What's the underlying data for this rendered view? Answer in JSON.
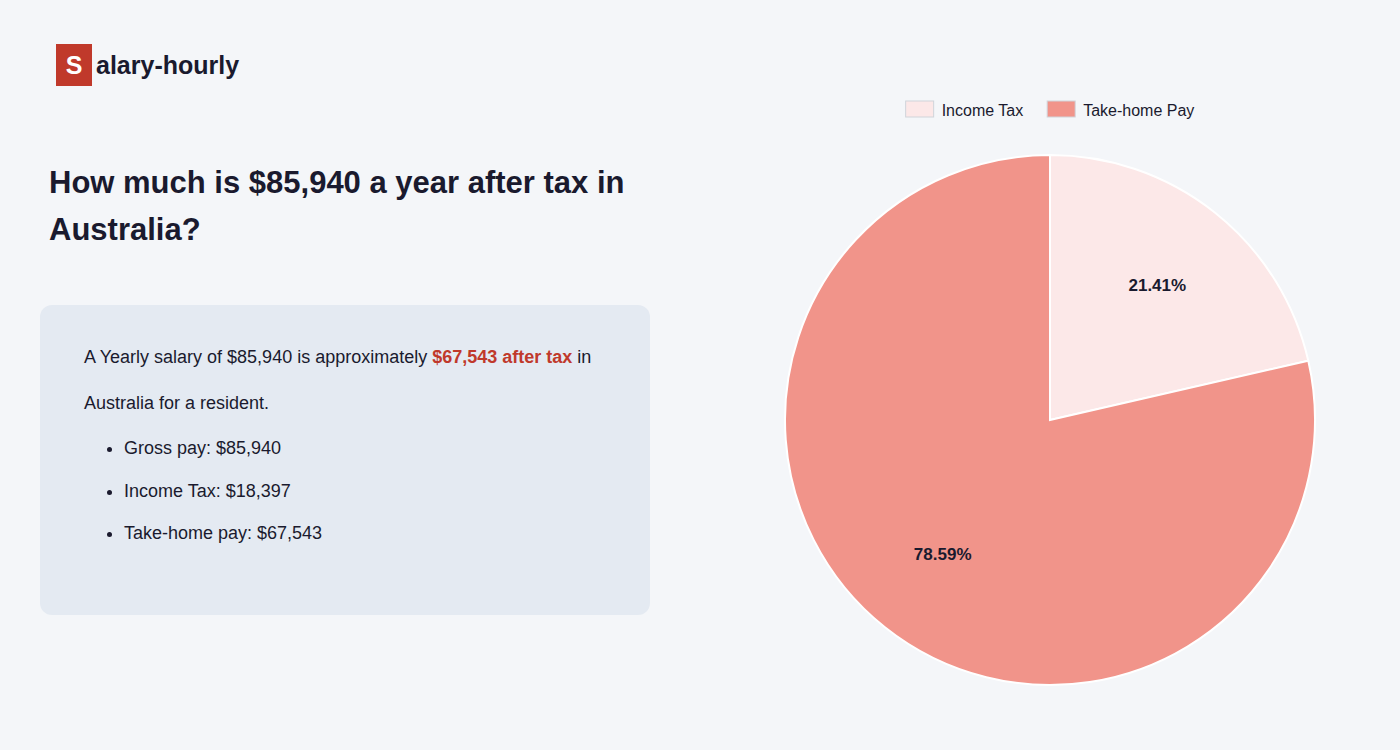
{
  "chart_data": {
    "type": "pie",
    "title": "How much is $85,940 a year after tax in Australia?",
    "annotations": [
      [
        "S",
        "alary-hourly"
      ],
      [
        "A Yearly salary of $85,940 is approximately ",
        "$67,543 after tax",
        " in"
      ],
      [
        "Australia for a resident."
      ],
      [
        "Gross pay: $85,940"
      ],
      [
        "Income Tax: $18,397"
      ],
      [
        "Take-home pay: $67,543"
      ]
    ],
    "categories": [
      "Income Tax",
      "Take-home Pay"
    ],
    "values": [
      21.41,
      78.59
    ],
    "value_labels": [
      "21.41%",
      "78.59%"
    ],
    "colors": [
      "#fce8e8",
      "#f1948a"
    ],
    "data_labels": true,
    "legend": "top"
  }
}
